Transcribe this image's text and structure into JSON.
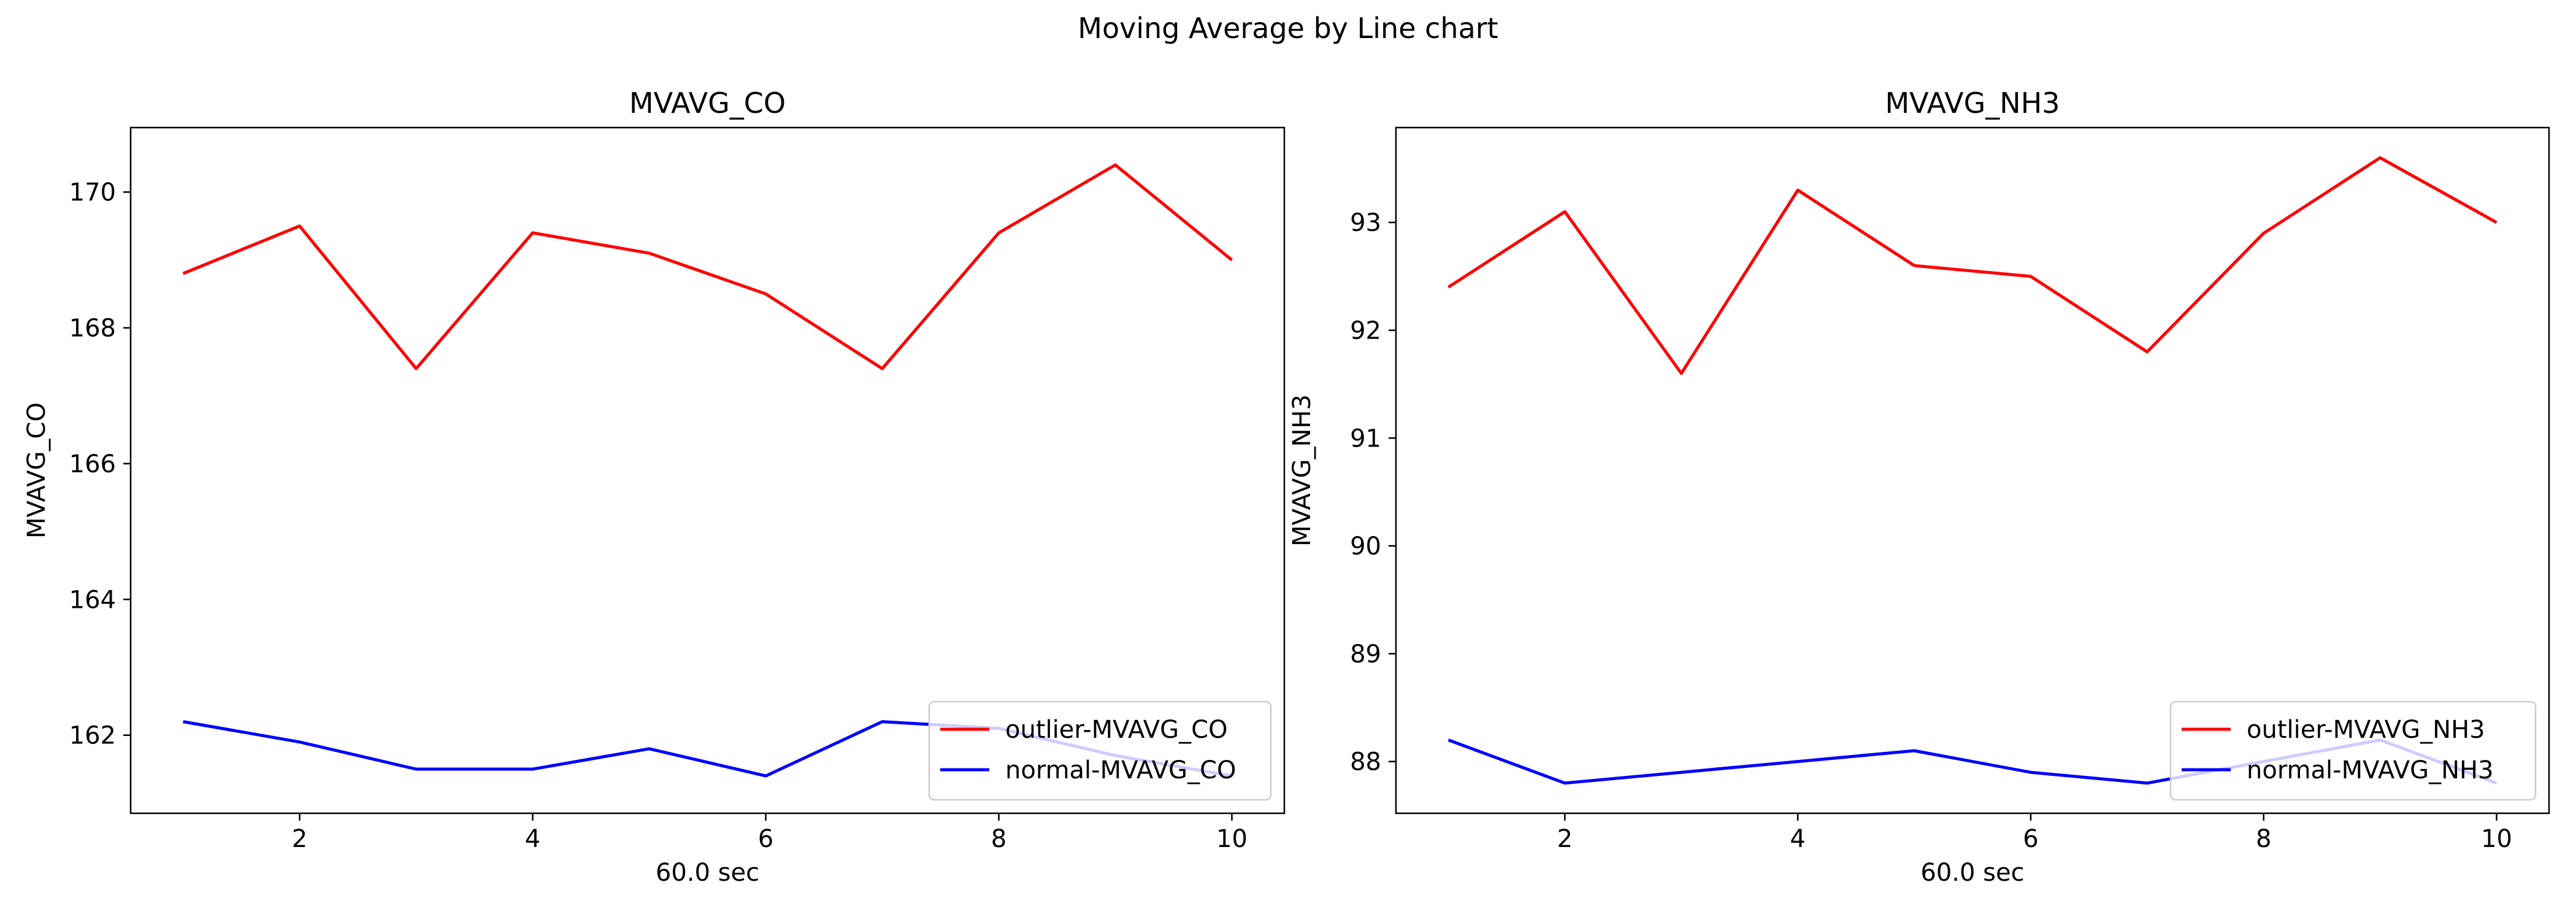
{
  "suptitle": "Moving Average by Line chart",
  "chart_data": [
    {
      "type": "line",
      "title": "MVAVG_CO",
      "xlabel": "60.0 sec",
      "ylabel": "MVAVG_CO",
      "xlim": [
        0.55,
        10.45
      ],
      "ylim": [
        160.85,
        170.95
      ],
      "xticks": [
        2,
        4,
        6,
        8,
        10
      ],
      "yticks": [
        162,
        164,
        166,
        168,
        170
      ],
      "legend_position": "lower-right",
      "grid": false,
      "x": [
        1,
        2,
        3,
        4,
        5,
        6,
        7,
        8,
        9,
        10
      ],
      "series": [
        {
          "name": "outlier-MVAVG_CO",
          "color": "#ff0000",
          "values": [
            168.8,
            169.5,
            167.4,
            169.4,
            169.1,
            168.5,
            167.4,
            169.4,
            170.4,
            169.0
          ]
        },
        {
          "name": "normal-MVAVG_CO",
          "color": "#0000ff",
          "values": [
            162.2,
            161.9,
            161.5,
            161.5,
            161.8,
            161.4,
            162.2,
            162.1,
            161.7,
            161.4
          ]
        }
      ]
    },
    {
      "type": "line",
      "title": "MVAVG_NH3",
      "xlabel": "60.0 sec",
      "ylabel": "MVAVG_NH3",
      "xlim": [
        0.55,
        10.45
      ],
      "ylim": [
        87.52,
        93.88
      ],
      "xticks": [
        2,
        4,
        6,
        8,
        10
      ],
      "yticks": [
        88,
        89,
        90,
        91,
        92,
        93
      ],
      "legend_position": "lower-right",
      "grid": false,
      "x": [
        1,
        2,
        3,
        4,
        5,
        6,
        7,
        8,
        9,
        10
      ],
      "series": [
        {
          "name": "outlier-MVAVG_NH3",
          "color": "#ff0000",
          "values": [
            92.4,
            93.1,
            91.6,
            93.3,
            92.6,
            92.5,
            91.8,
            92.9,
            93.6,
            93.0
          ]
        },
        {
          "name": "normal-MVAVG_NH3",
          "color": "#0000ff",
          "values": [
            88.2,
            87.8,
            87.9,
            88.0,
            88.1,
            87.9,
            87.8,
            88.0,
            88.2,
            87.8
          ]
        }
      ]
    }
  ]
}
